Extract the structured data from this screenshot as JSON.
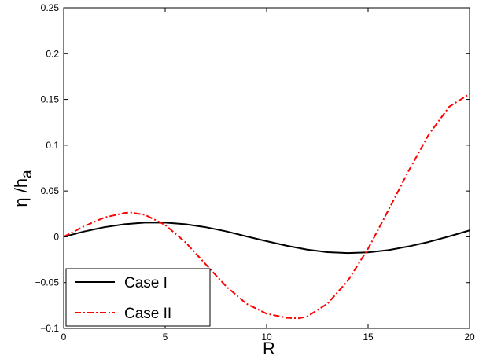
{
  "chart_data": {
    "type": "line",
    "xlabel": "R",
    "ylabel_main": "η /h",
    "ylabel_sub": "a",
    "xlim": [
      0,
      20
    ],
    "ylim": [
      -0.1,
      0.25
    ],
    "xticks": [
      0,
      5,
      10,
      15,
      20
    ],
    "yticks": [
      -0.1,
      -0.05,
      0,
      0.05,
      0.1,
      0.15,
      0.2,
      0.25
    ],
    "xtick_labels": [
      "0",
      "5",
      "10",
      "15",
      "20"
    ],
    "ytick_labels": [
      "−0.1",
      "−0.05",
      "0",
      "0.05",
      "0.1",
      "0.15",
      "0.2",
      "0.25"
    ],
    "grid": false,
    "legend_position": "bottom-left",
    "series": [
      {
        "name": "Case I",
        "color": "#000000",
        "dash": "solid",
        "x": [
          0,
          1,
          2,
          3,
          4,
          5,
          6,
          7,
          8,
          9,
          10,
          11,
          12,
          13,
          14,
          15,
          16,
          17,
          18,
          19,
          20
        ],
        "y": [
          0,
          0.0058,
          0.0105,
          0.0138,
          0.0155,
          0.0155,
          0.0138,
          0.0105,
          0.006,
          0.0005,
          -0.0048,
          -0.0098,
          -0.014,
          -0.0168,
          -0.0178,
          -0.017,
          -0.0145,
          -0.0105,
          -0.0055,
          0.0005,
          0.007
        ]
      },
      {
        "name": "Case II",
        "color": "#ff0000",
        "dash": "dashdot",
        "x": [
          0,
          1,
          2,
          3,
          3.3,
          4,
          5,
          6,
          7,
          8,
          9,
          10,
          11,
          11.6,
          12,
          13,
          14,
          15,
          16,
          17,
          18,
          19,
          20
        ],
        "y": [
          0,
          0.0115,
          0.021,
          0.026,
          0.0265,
          0.024,
          0.013,
          -0.006,
          -0.03,
          -0.054,
          -0.073,
          -0.084,
          -0.0885,
          -0.089,
          -0.087,
          -0.073,
          -0.048,
          -0.013,
          0.029,
          0.072,
          0.112,
          0.142,
          0.156
        ]
      }
    ]
  }
}
